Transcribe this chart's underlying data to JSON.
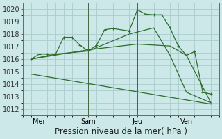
{
  "background_color": "#cde8e8",
  "grid_color": "#aacccc",
  "line_color": "#2d6e2d",
  "ylim": [
    1011.5,
    1020.5
  ],
  "yticks": [
    1012,
    1013,
    1014,
    1015,
    1016,
    1017,
    1018,
    1019,
    1020
  ],
  "xlabel": "Pression niveau de la mer( hPa )",
  "xlabel_fontsize": 8.5,
  "tick_fontsize": 7,
  "xtick_labels": [
    "Mer",
    "Sam",
    "Jeu",
    "Ven"
  ],
  "xtick_positions": [
    1,
    4,
    7,
    10
  ],
  "vline_positions": [
    1,
    4,
    7,
    10
  ],
  "xlim": [
    0,
    12
  ],
  "lines": [
    {
      "x": [
        0.5,
        1.0,
        1.5,
        2.0,
        2.5,
        3.0,
        3.5,
        4.0,
        4.5,
        5.0,
        5.5,
        6.5,
        7.0,
        7.5,
        8.0,
        8.5,
        9.0,
        9.5,
        10.0,
        10.5,
        11.0,
        11.5
      ],
      "y": [
        1016.0,
        1016.4,
        1016.4,
        1016.4,
        1017.75,
        1017.75,
        1017.1,
        1016.65,
        1017.1,
        1018.35,
        1018.45,
        1018.25,
        1019.95,
        1019.6,
        1019.55,
        1019.55,
        1018.5,
        1017.05,
        1016.3,
        1016.6,
        1013.35,
        1013.2
      ],
      "marker": true
    },
    {
      "x": [
        0.5,
        2.0,
        4.0,
        6.5,
        8.0,
        9.0,
        10.0,
        11.5
      ],
      "y": [
        1016.0,
        1016.4,
        1016.65,
        1018.0,
        1018.5,
        1016.3,
        1013.35,
        1012.5
      ],
      "marker": false
    },
    {
      "x": [
        0.5,
        4.0,
        7.0,
        9.0,
        10.0,
        11.5
      ],
      "y": [
        1016.0,
        1016.75,
        1017.2,
        1017.05,
        1016.3,
        1012.5
      ],
      "marker": false
    },
    {
      "x": [
        0.5,
        11.5
      ],
      "y": [
        1014.8,
        1012.4
      ],
      "marker": false
    }
  ]
}
